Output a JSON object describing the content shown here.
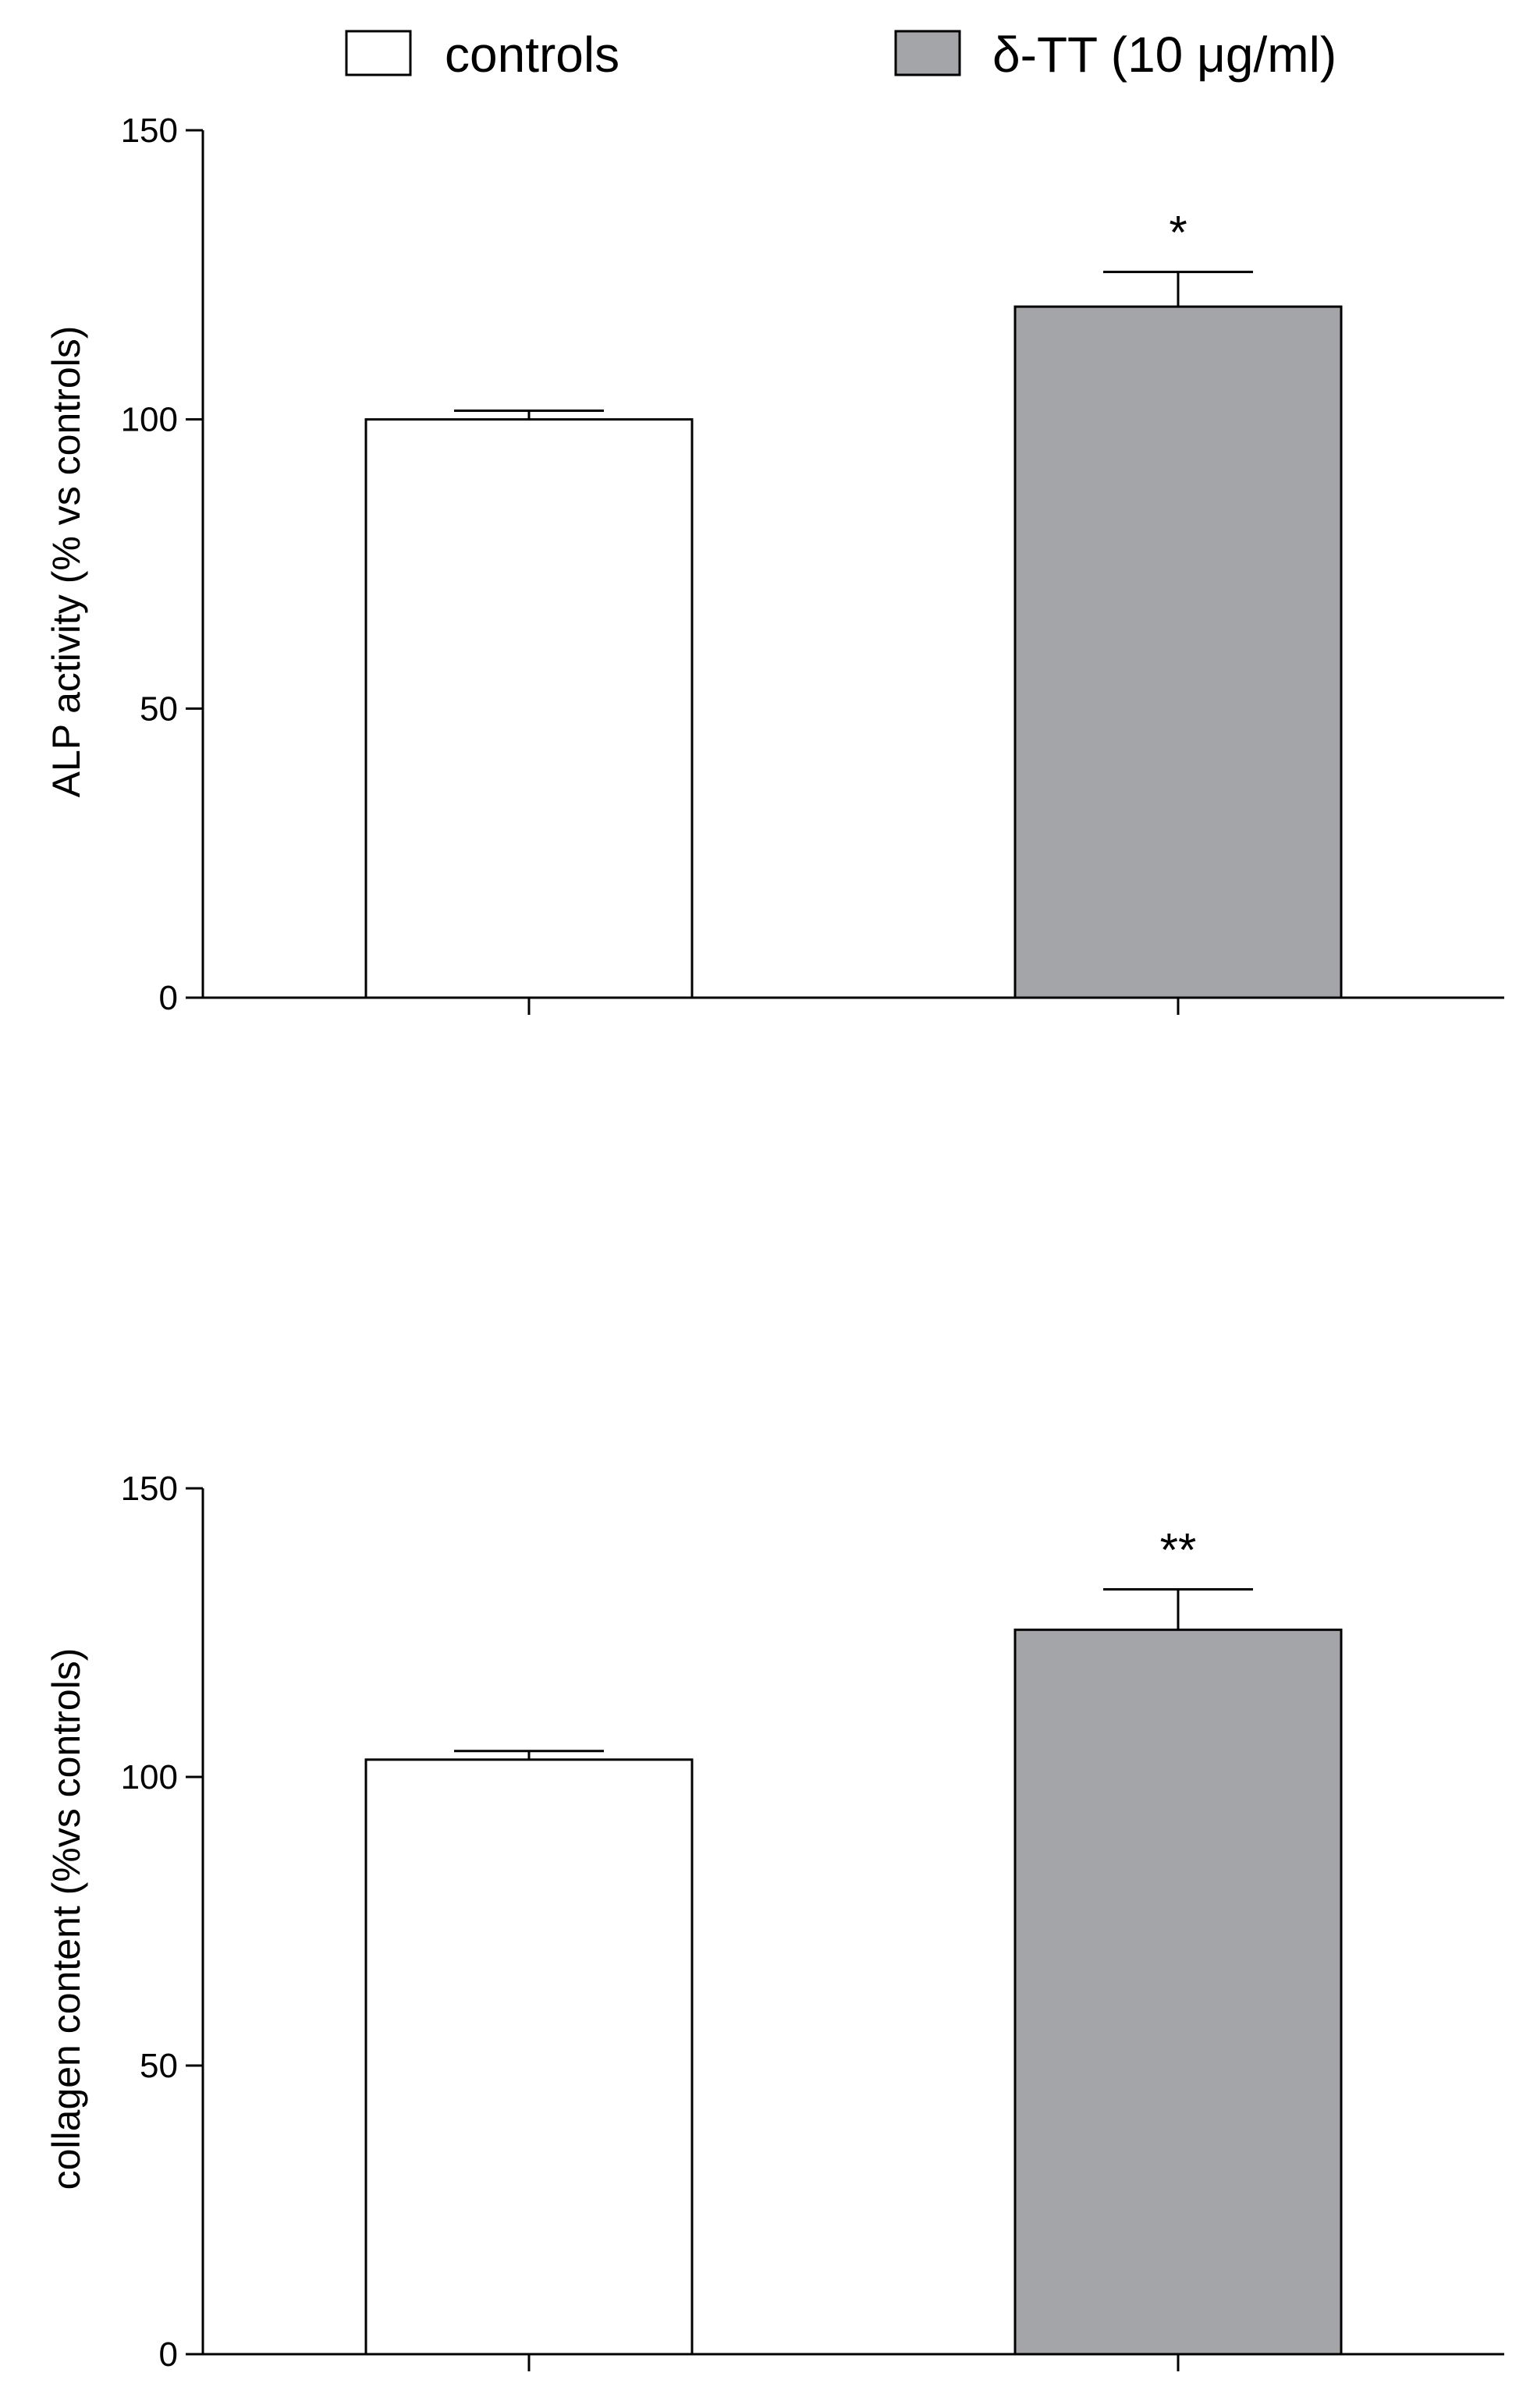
{
  "legend": {
    "items": [
      {
        "label": "controls",
        "color": "#ffffff"
      },
      {
        "label": "δ-TT (10 μg/ml)",
        "color": "#a4a5a9"
      }
    ]
  },
  "chart_data": [
    {
      "type": "bar",
      "categories": [
        "controls",
        "δ-TT (10 μg/ml)"
      ],
      "values": [
        100,
        119.5
      ],
      "errors": [
        1.5,
        6
      ],
      "colors": [
        "#ffffff",
        "#a4a5a9"
      ],
      "annotations": [
        "",
        "*"
      ],
      "title": "",
      "xlabel": "",
      "ylabel": "ALP activity (% vs controls)",
      "ylim": [
        0,
        150
      ],
      "yticks": [
        "0",
        "50",
        "100",
        "150"
      ],
      "grid": false,
      "legend_position": "top"
    },
    {
      "type": "bar",
      "categories": [
        "controls",
        "δ-TT (10 μg/ml)"
      ],
      "values": [
        103,
        125.5
      ],
      "errors": [
        1.5,
        7
      ],
      "colors": [
        "#ffffff",
        "#a4a5a9"
      ],
      "annotations": [
        "",
        "**"
      ],
      "title": "",
      "xlabel": "",
      "ylabel": "collagen content (%vs controls)",
      "ylim": [
        0,
        150
      ],
      "yticks": [
        "0",
        "50",
        "100",
        "150"
      ],
      "grid": false,
      "legend_position": "top"
    }
  ]
}
